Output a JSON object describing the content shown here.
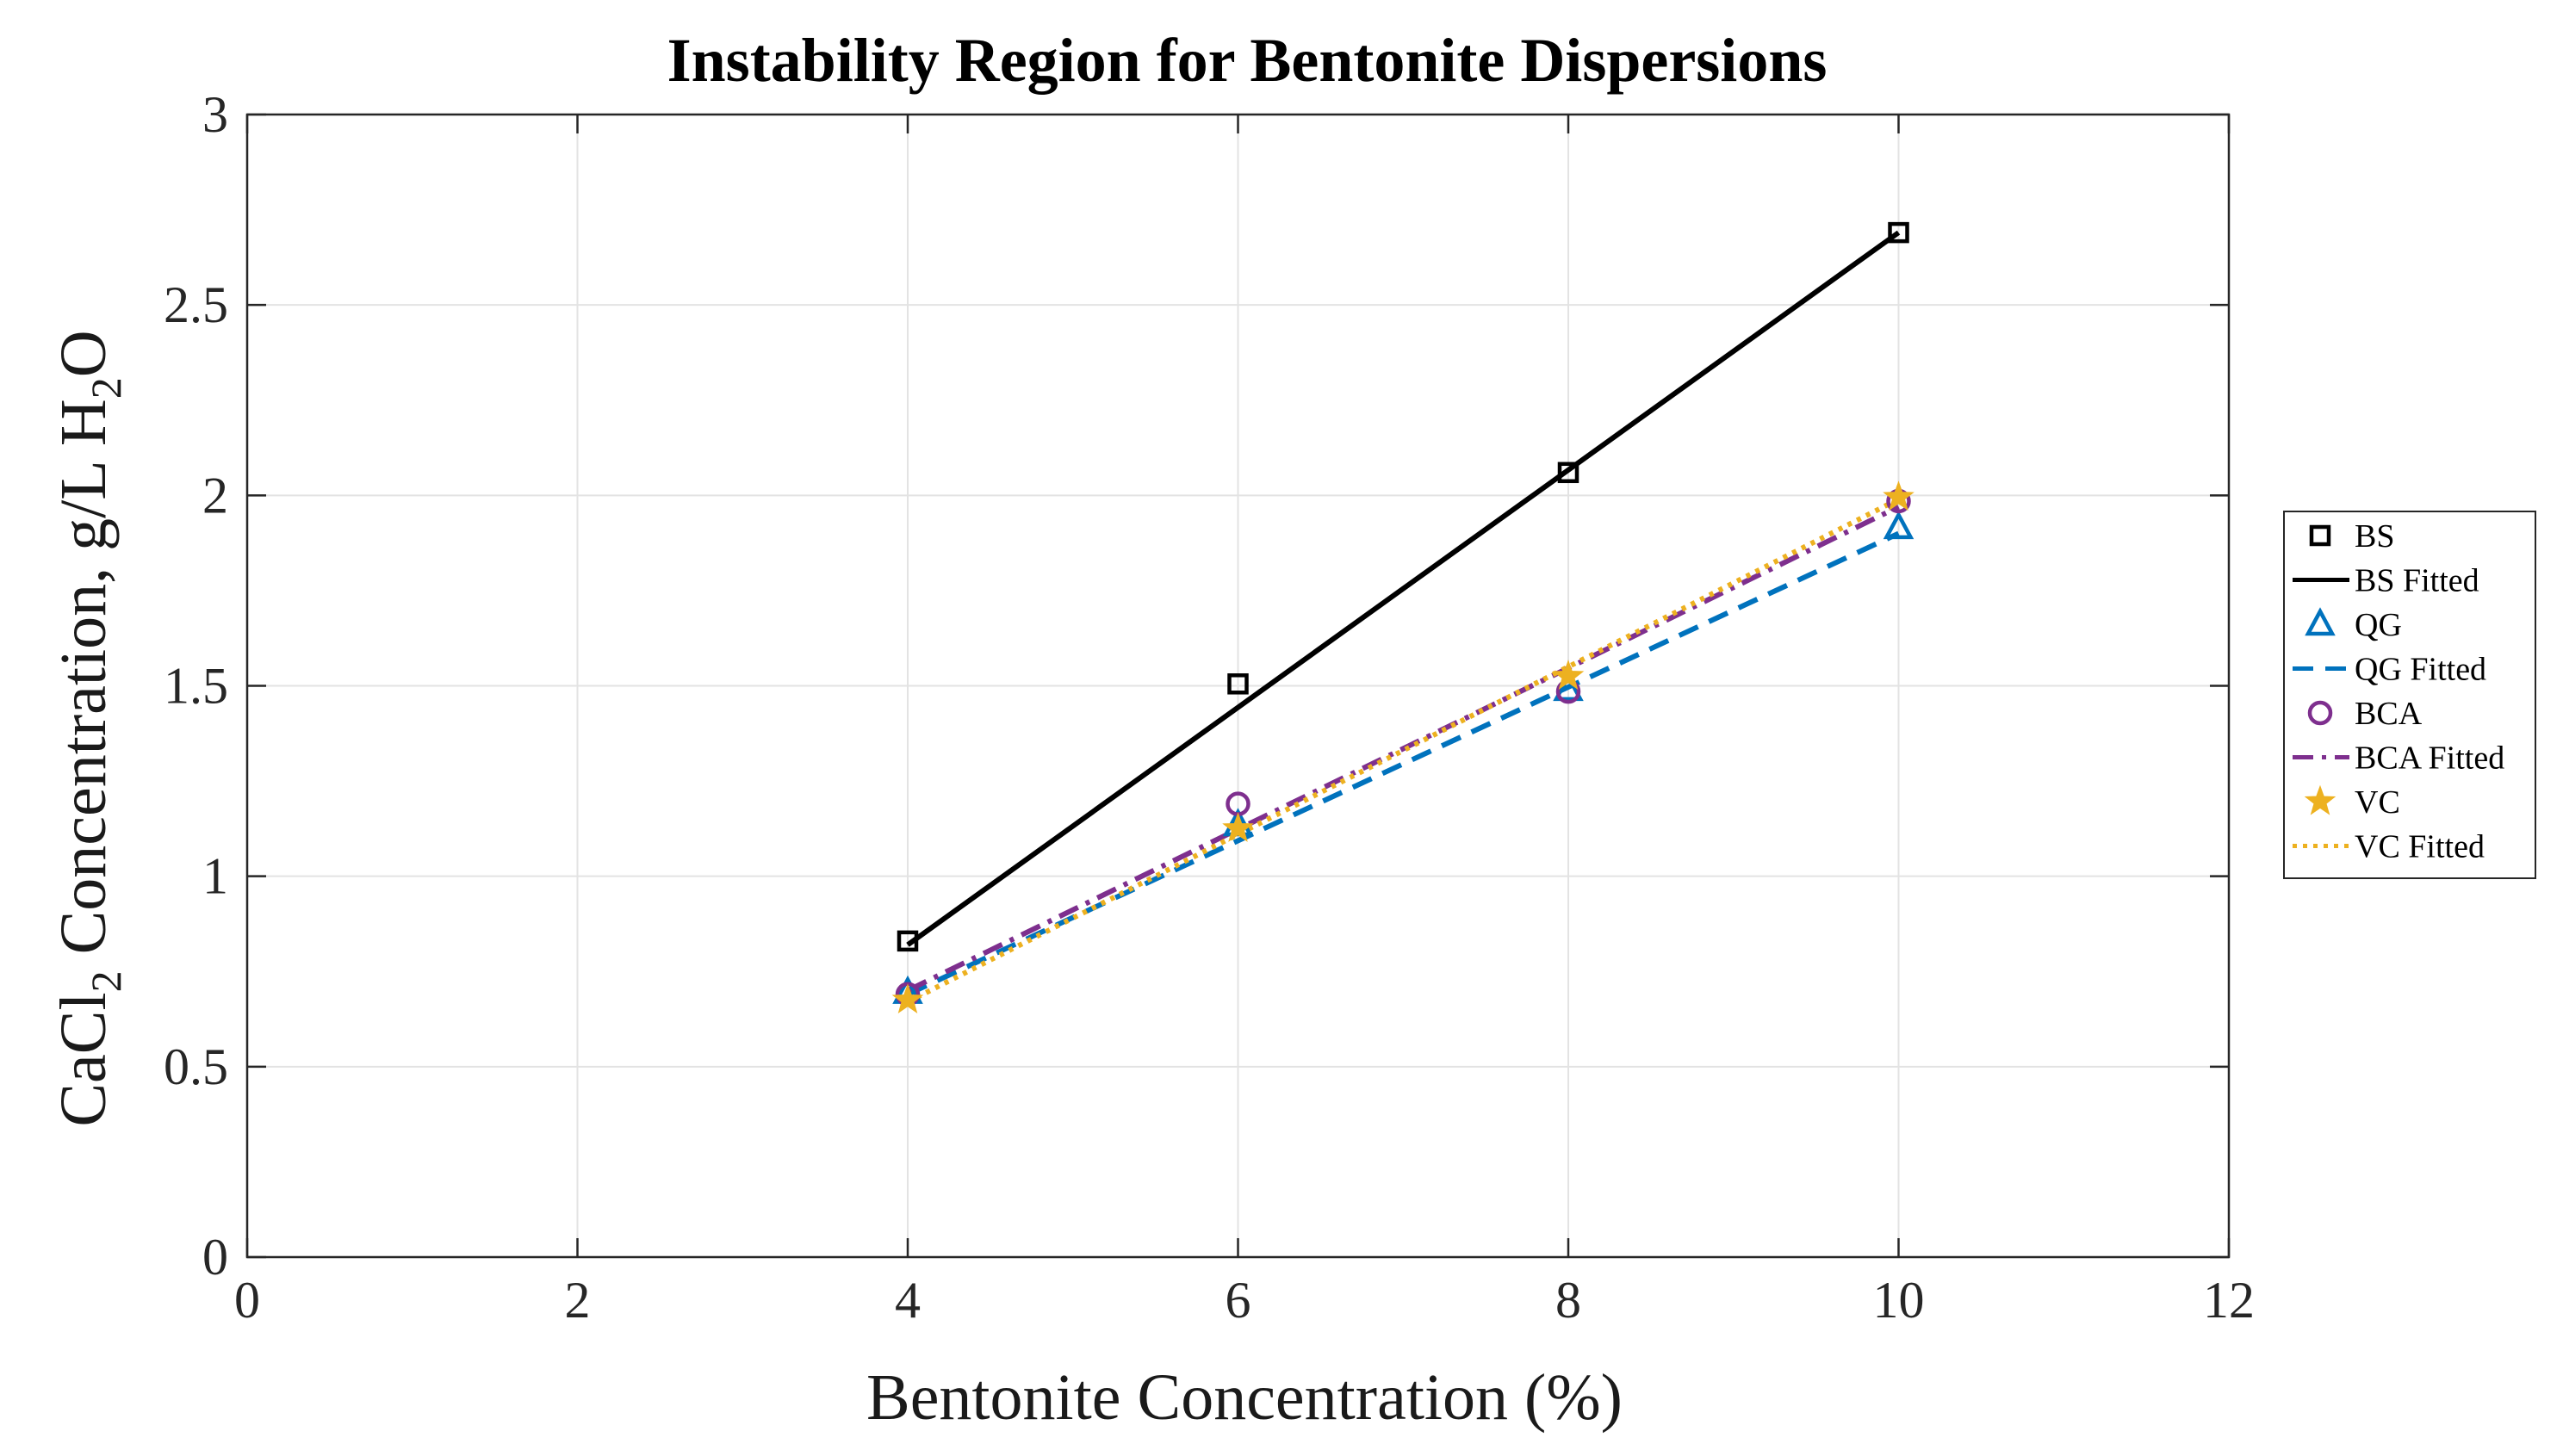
{
  "chart_data": {
    "type": "line",
    "title": "Instability Region for Bentonite Dispersions",
    "xlabel": "Bentonite Concentration (%)",
    "ylabel": {
      "main": "CaCl",
      "sub1": "2",
      "mid": " Concentration, g/L H",
      "sub2": "2",
      "end": "O"
    },
    "xlim": [
      0,
      12
    ],
    "ylim": [
      0,
      3
    ],
    "xticks": [
      0,
      2,
      4,
      6,
      8,
      10,
      12
    ],
    "yticks": [
      0,
      0.5,
      1,
      1.5,
      2,
      2.5,
      3
    ],
    "xtick_labels": [
      "0",
      "2",
      "4",
      "6",
      "8",
      "10",
      "12"
    ],
    "ytick_labels": [
      "0",
      "0.5",
      "1",
      "1.5",
      "2",
      "2.5",
      "3"
    ],
    "grid": true,
    "legend_position": "outside-right",
    "series": [
      {
        "name": "BS",
        "kind": "markers",
        "marker": "square",
        "color": "#000000",
        "x": [
          4,
          6,
          8,
          10
        ],
        "y": [
          0.83,
          1.505,
          2.06,
          2.69
        ]
      },
      {
        "name": "BS Fitted",
        "kind": "line",
        "dash": "solid",
        "color": "#000000",
        "x": [
          4,
          10
        ],
        "y": [
          0.82,
          2.69
        ]
      },
      {
        "name": "QG",
        "kind": "markers",
        "marker": "triangle",
        "color": "#0072BD",
        "x": [
          4,
          6,
          8,
          10
        ],
        "y": [
          0.695,
          1.135,
          1.49,
          1.915
        ]
      },
      {
        "name": "QG Fitted",
        "kind": "line",
        "dash": "dash",
        "color": "#0072BD",
        "x": [
          4,
          10
        ],
        "y": [
          0.69,
          1.9
        ]
      },
      {
        "name": "BCA",
        "kind": "markers",
        "marker": "circle",
        "color": "#7E2F8E",
        "x": [
          4,
          6,
          8,
          10
        ],
        "y": [
          0.69,
          1.19,
          1.485,
          1.985
        ]
      },
      {
        "name": "BCA Fitted",
        "kind": "line",
        "dash": "dashdot",
        "color": "#7E2F8E",
        "x": [
          4,
          10
        ],
        "y": [
          0.7,
          1.97
        ]
      },
      {
        "name": "VC",
        "kind": "markers",
        "marker": "star",
        "color": "#EDB120",
        "x": [
          4,
          6,
          8,
          10
        ],
        "y": [
          0.675,
          1.125,
          1.525,
          1.995
        ]
      },
      {
        "name": "VC Fitted",
        "kind": "line",
        "dash": "dot",
        "color": "#EDB120",
        "x": [
          4,
          10
        ],
        "y": [
          0.67,
          1.99
        ]
      }
    ]
  }
}
